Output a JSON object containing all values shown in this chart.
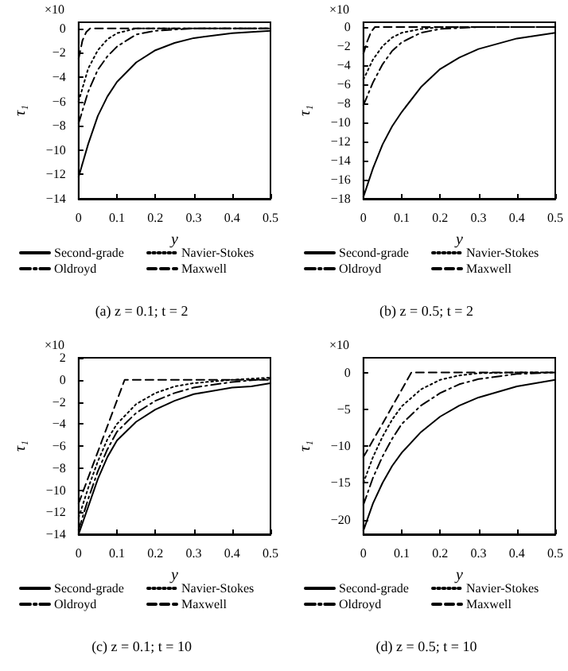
{
  "chart_data": [
    {
      "type": "line",
      "title": "(a) z = 0.1; t = 2",
      "xlabel": "y",
      "ylabel": "τ₁",
      "annotations": [
        "×10"
      ],
      "xlim": [
        0,
        0.5
      ],
      "xticks": [
        0,
        0.1,
        0.2,
        0.3,
        0.4,
        0.5
      ],
      "ylim": [
        -14,
        0.5
      ],
      "yticks": [
        -14,
        -12,
        -10,
        -8,
        -6,
        -4,
        -2,
        0
      ],
      "grid": false,
      "legend": "bottom",
      "series": [
        {
          "name": "Second-grade",
          "color": "#000000",
          "line_style": "solid",
          "x": [
            0,
            0.025,
            0.05,
            0.075,
            0.1,
            0.15,
            0.2,
            0.25,
            0.3,
            0.4,
            0.5
          ],
          "values": [
            -12.2,
            -9.5,
            -7.2,
            -5.6,
            -4.4,
            -2.8,
            -1.8,
            -1.2,
            -0.8,
            -0.4,
            -0.2
          ]
        },
        {
          "name": "Navier-Stokes",
          "color": "#000000",
          "line_style": "dotted",
          "x": [
            0,
            0.025,
            0.05,
            0.075,
            0.1,
            0.15,
            0.2,
            0.5
          ],
          "values": [
            -6,
            -3.3,
            -1.8,
            -0.9,
            -0.4,
            0,
            0,
            0
          ]
        },
        {
          "name": "Oldroyd",
          "color": "#000000",
          "line_style": "dashdot",
          "x": [
            0,
            0.025,
            0.05,
            0.075,
            0.1,
            0.15,
            0.2,
            0.3,
            0.5
          ],
          "values": [
            -7.8,
            -5.2,
            -3.4,
            -2.3,
            -1.5,
            -0.5,
            -0.2,
            0,
            0
          ]
        },
        {
          "name": "Maxwell",
          "color": "#000000",
          "line_style": "dashed",
          "x": [
            0,
            0.01,
            0.02,
            0.03,
            0.5
          ],
          "values": [
            -2.5,
            -1,
            -0.3,
            0,
            0
          ]
        }
      ]
    },
    {
      "type": "line",
      "title": "(b) z = 0.5; t = 2",
      "xlabel": "y",
      "ylabel": "τ₁",
      "annotations": [
        "×10"
      ],
      "xlim": [
        0,
        0.5
      ],
      "xticks": [
        0,
        0.1,
        0.2,
        0.3,
        0.4,
        0.5
      ],
      "ylim": [
        -18,
        0.5
      ],
      "yticks": [
        -18,
        -16,
        -14,
        -12,
        -10,
        -8,
        -6,
        -4,
        -2,
        0
      ],
      "grid": false,
      "legend": "bottom",
      "series": [
        {
          "name": "Second-grade",
          "color": "#000000",
          "line_style": "solid",
          "x": [
            0,
            0.025,
            0.05,
            0.075,
            0.1,
            0.15,
            0.2,
            0.25,
            0.3,
            0.4,
            0.5
          ],
          "values": [
            -17.8,
            -14.8,
            -12.3,
            -10.4,
            -8.9,
            -6.3,
            -4.4,
            -3.2,
            -2.3,
            -1.2,
            -0.6
          ]
        },
        {
          "name": "Navier-Stokes",
          "color": "#000000",
          "line_style": "dotted",
          "x": [
            0,
            0.025,
            0.05,
            0.075,
            0.1,
            0.15,
            0.2,
            0.5
          ],
          "values": [
            -5.5,
            -3.4,
            -2,
            -1.1,
            -0.6,
            -0.2,
            0,
            0
          ]
        },
        {
          "name": "Oldroyd",
          "color": "#000000",
          "line_style": "dashdot",
          "x": [
            0,
            0.025,
            0.05,
            0.075,
            0.1,
            0.15,
            0.2,
            0.3,
            0.5
          ],
          "values": [
            -8.2,
            -5.8,
            -3.9,
            -2.5,
            -1.6,
            -0.6,
            -0.2,
            0,
            0
          ]
        },
        {
          "name": "Maxwell",
          "color": "#000000",
          "line_style": "dashed",
          "x": [
            0,
            0.01,
            0.02,
            0.03,
            0.5
          ],
          "values": [
            -2.8,
            -1.5,
            -0.5,
            0,
            0
          ]
        }
      ]
    },
    {
      "type": "line",
      "title": "(c) z = 0.1; t = 10",
      "xlabel": "y",
      "ylabel": "τ₁",
      "annotations": [
        "×10"
      ],
      "xlim": [
        0,
        0.5
      ],
      "xticks": [
        0,
        0.1,
        0.2,
        0.3,
        0.4,
        0.5
      ],
      "ylim": [
        -14,
        2
      ],
      "yticks": [
        -14,
        -12,
        -10,
        -8,
        -6,
        -4,
        -2,
        0,
        2
      ],
      "grid": false,
      "legend": "bottom",
      "series": [
        {
          "name": "Second-grade",
          "color": "#000000",
          "line_style": "solid",
          "x": [
            0,
            0.025,
            0.05,
            0.075,
            0.1,
            0.15,
            0.2,
            0.25,
            0.3,
            0.4,
            0.45,
            0.5
          ],
          "values": [
            -14,
            -11.5,
            -9,
            -7,
            -5.5,
            -3.8,
            -2.7,
            -1.9,
            -1.3,
            -0.7,
            -0.6,
            -0.3
          ]
        },
        {
          "name": "Navier-Stokes",
          "color": "#000000",
          "line_style": "dotted",
          "x": [
            0,
            0.025,
            0.05,
            0.075,
            0.1,
            0.15,
            0.2,
            0.25,
            0.3,
            0.4,
            0.5
          ],
          "values": [
            -12.5,
            -9.8,
            -7.4,
            -5.4,
            -4,
            -2.2,
            -1.2,
            -0.6,
            -0.3,
            0,
            0.2
          ]
        },
        {
          "name": "Oldroyd",
          "color": "#000000",
          "line_style": "dashdot",
          "x": [
            0,
            0.025,
            0.05,
            0.075,
            0.1,
            0.15,
            0.2,
            0.25,
            0.3,
            0.4,
            0.5
          ],
          "values": [
            -13.6,
            -10.8,
            -8.3,
            -6.3,
            -4.7,
            -3,
            -1.9,
            -1.2,
            -0.7,
            -0.2,
            0.1
          ]
        },
        {
          "name": "Maxwell",
          "color": "#000000",
          "line_style": "dashed",
          "x": [
            0,
            0.06,
            0.12,
            0.5
          ],
          "values": [
            -11.2,
            -5.6,
            0,
            0
          ]
        }
      ]
    },
    {
      "type": "line",
      "title": "(d) z = 0.5; t = 10",
      "xlabel": "y",
      "ylabel": "τ₁",
      "annotations": [
        "×10"
      ],
      "xlim": [
        0,
        0.5
      ],
      "xticks": [
        0,
        0.1,
        0.2,
        0.3,
        0.4,
        0.5
      ],
      "ylim": [
        -22,
        2
      ],
      "yticks": [
        -20,
        -15,
        -10,
        -5,
        0
      ],
      "grid": false,
      "legend": "bottom",
      "series": [
        {
          "name": "Second-grade",
          "color": "#000000",
          "line_style": "solid",
          "x": [
            0,
            0.025,
            0.05,
            0.075,
            0.1,
            0.15,
            0.2,
            0.25,
            0.3,
            0.4,
            0.5
          ],
          "values": [
            -21.5,
            -17.8,
            -15,
            -12.7,
            -10.9,
            -8.1,
            -6,
            -4.5,
            -3.4,
            -1.9,
            -1
          ]
        },
        {
          "name": "Navier-Stokes",
          "color": "#000000",
          "line_style": "dotted",
          "x": [
            0,
            0.025,
            0.05,
            0.075,
            0.1,
            0.15,
            0.2,
            0.25,
            0.3,
            0.4,
            0.5
          ],
          "values": [
            -15,
            -11.5,
            -8.7,
            -6.4,
            -4.6,
            -2.3,
            -1,
            -0.4,
            -0.1,
            0,
            0
          ]
        },
        {
          "name": "Oldroyd",
          "color": "#000000",
          "line_style": "dashdot",
          "x": [
            0,
            0.025,
            0.05,
            0.075,
            0.1,
            0.15,
            0.2,
            0.25,
            0.3,
            0.4,
            0.5
          ],
          "values": [
            -18,
            -14.3,
            -11.4,
            -9,
            -7,
            -4.5,
            -2.8,
            -1.6,
            -0.9,
            -0.2,
            0
          ]
        },
        {
          "name": "Maxwell",
          "color": "#000000",
          "line_style": "dashed",
          "x": [
            0,
            0.0625,
            0.125,
            0.5
          ],
          "values": [
            -11.5,
            -5.8,
            0,
            0
          ]
        }
      ]
    }
  ]
}
